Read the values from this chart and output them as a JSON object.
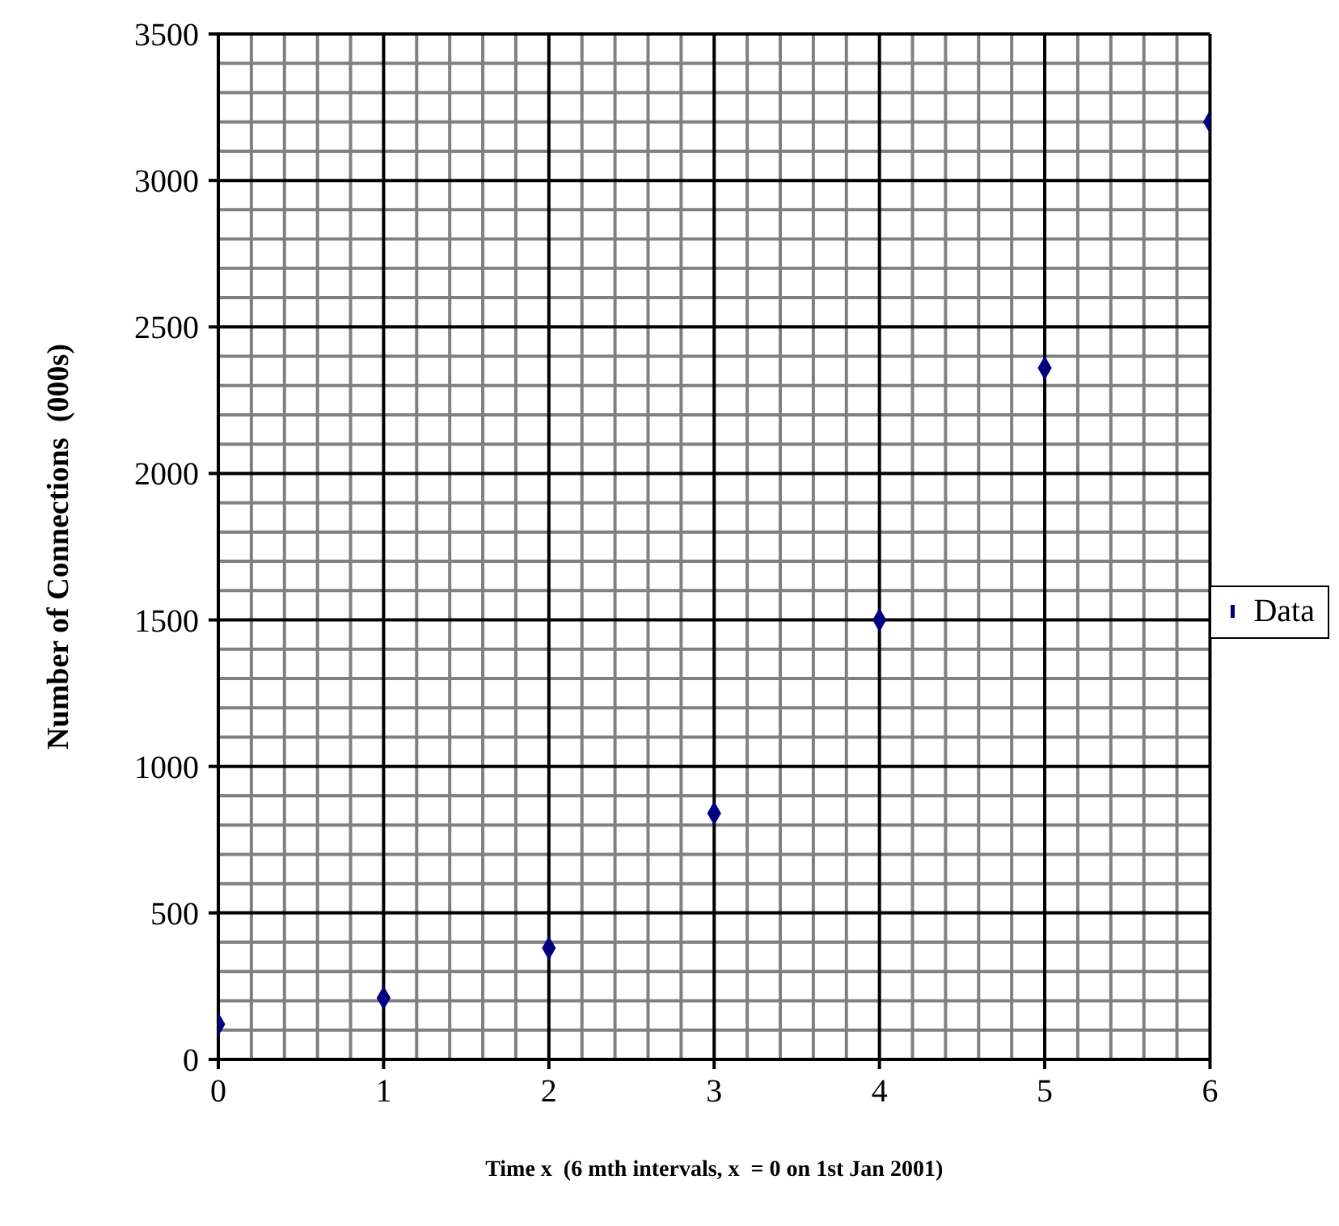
{
  "chart_data": {
    "type": "scatter",
    "xlabel": "Time x  (6 mth intervals, x  = 0 on 1st Jan 2001)",
    "ylabel": "Number of Connections  (000s)",
    "x": [
      0,
      1,
      2,
      3,
      4,
      5,
      6
    ],
    "series": [
      {
        "name": "Data",
        "color": "#000080",
        "values": [
          120,
          210,
          380,
          840,
          1500,
          2360,
          3200
        ]
      }
    ],
    "xlim": [
      0,
      6
    ],
    "xticks": [
      0,
      {
        "value": 0.2,
        "label": null
      },
      {
        "value": 0.4,
        "label": null
      },
      {
        "value": 0.6,
        "label": null
      },
      {
        "value": 0.8,
        "label": null
      },
      1,
      {
        "value": 1.2,
        "label": null
      },
      {
        "value": 1.4,
        "label": null
      },
      {
        "value": 1.6,
        "label": null
      },
      {
        "value": 1.8,
        "label": null
      },
      2,
      {
        "value": 2.2,
        "label": null
      },
      {
        "value": 2.4,
        "label": null
      },
      {
        "value": 2.6,
        "label": null
      },
      {
        "value": 2.8,
        "label": null
      },
      3,
      {
        "value": 3.2,
        "label": null
      },
      {
        "value": 3.4,
        "label": null
      },
      {
        "value": 3.6,
        "label": null
      },
      {
        "value": 3.8,
        "label": null
      },
      4,
      {
        "value": 4.2,
        "label": null
      },
      {
        "value": 4.4,
        "label": null
      },
      {
        "value": 4.6,
        "label": null
      },
      {
        "value": 4.8,
        "label": null
      },
      5,
      {
        "value": 5.2,
        "label": null
      },
      {
        "value": 5.4,
        "label": null
      },
      {
        "value": 5.6,
        "label": null
      },
      {
        "value": 5.8,
        "label": null
      },
      6
    ],
    "ylim": [
      0,
      3500
    ],
    "yticks": [
      0,
      {
        "value": 100,
        "label": null
      },
      {
        "value": 200,
        "label": null
      },
      {
        "value": 300,
        "label": null
      },
      {
        "value": 400,
        "label": null
      },
      500,
      {
        "value": 600,
        "label": null
      },
      {
        "value": 700,
        "label": null
      },
      {
        "value": 800,
        "label": null
      },
      {
        "value": 900,
        "label": null
      },
      1000,
      {
        "value": 1100,
        "label": null
      },
      {
        "value": 1200,
        "label": null
      },
      {
        "value": 1300,
        "label": null
      },
      {
        "value": 1400,
        "label": null
      },
      1500,
      {
        "value": 1600,
        "label": null
      },
      {
        "value": 1700,
        "label": null
      },
      {
        "value": 1800,
        "label": null
      },
      {
        "value": 1900,
        "label": null
      },
      2000,
      {
        "value": 2100,
        "label": null
      },
      {
        "value": 2200,
        "label": null
      },
      {
        "value": 2300,
        "label": null
      },
      {
        "value": 2400,
        "label": null
      },
      2500,
      {
        "value": 2600,
        "label": null
      },
      {
        "value": 2700,
        "label": null
      },
      {
        "value": 2800,
        "label": null
      },
      {
        "value": 2900,
        "label": null
      },
      3000,
      {
        "value": 3100,
        "label": null
      },
      {
        "value": 3200,
        "label": null
      },
      {
        "value": 3300,
        "label": null
      },
      {
        "value": 3400,
        "label": null
      },
      3500
    ],
    "grid": true,
    "legend": "right",
    "marker": "diamond"
  }
}
